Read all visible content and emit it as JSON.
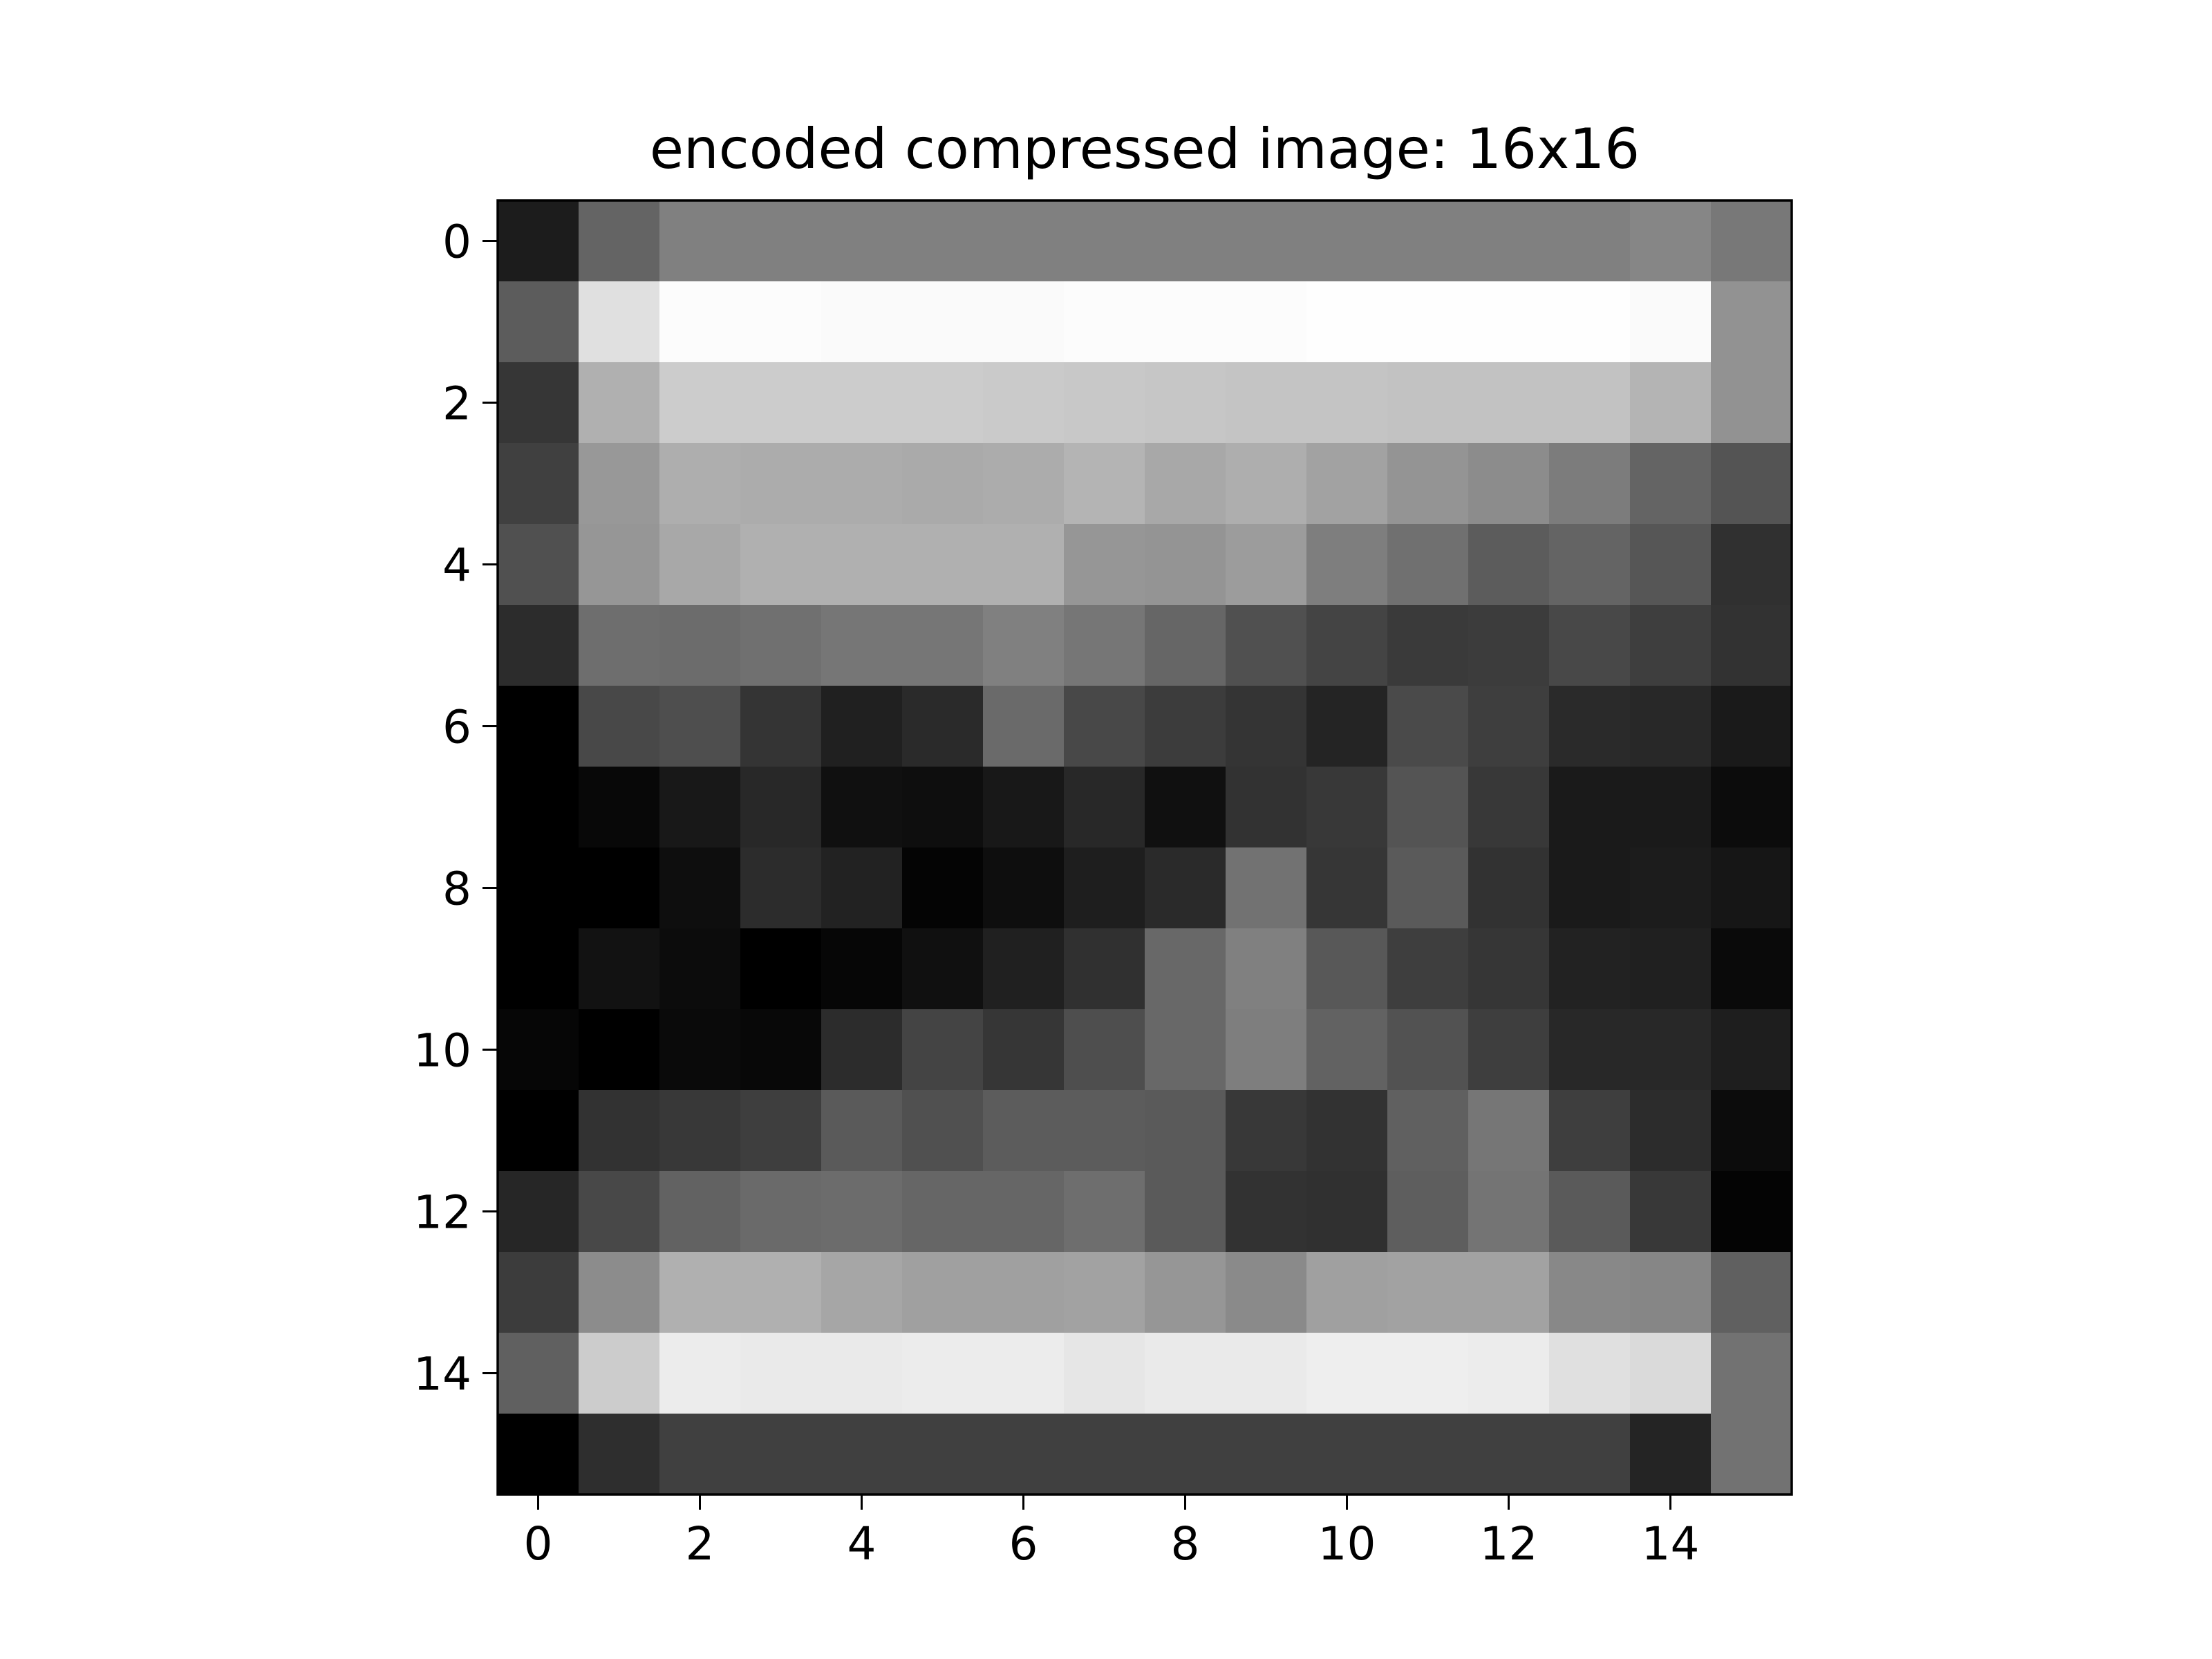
{
  "chart_data": {
    "type": "heatmap",
    "title": "encoded compressed image: 16x16",
    "xlabel": "",
    "ylabel": "",
    "colormap": "gray",
    "value_range": [
      0,
      255
    ],
    "rows": 16,
    "cols": 16,
    "x_ticks": [
      0,
      2,
      4,
      6,
      8,
      10,
      12,
      14
    ],
    "y_ticks": [
      0,
      2,
      4,
      6,
      8,
      10,
      12,
      14
    ],
    "xlim": [
      -0.5,
      15.5
    ],
    "ylim": [
      15.5,
      -0.5
    ],
    "grid": false,
    "values": [
      [
        28,
        100,
        128,
        128,
        128,
        128,
        128,
        128,
        128,
        128,
        128,
        128,
        128,
        128,
        134,
        120
      ],
      [
        92,
        224,
        252,
        252,
        250,
        250,
        250,
        252,
        252,
        252,
        254,
        254,
        254,
        254,
        250,
        146
      ],
      [
        54,
        176,
        204,
        204,
        204,
        204,
        202,
        200,
        198,
        196,
        196,
        194,
        194,
        194,
        180,
        146
      ],
      [
        64,
        152,
        174,
        172,
        172,
        170,
        172,
        180,
        168,
        174,
        162,
        148,
        140,
        124,
        100,
        84
      ],
      [
        80,
        150,
        168,
        176,
        176,
        176,
        176,
        150,
        148,
        156,
        126,
        112,
        92,
        100,
        86,
        48
      ],
      [
        44,
        110,
        108,
        112,
        118,
        118,
        128,
        118,
        102,
        80,
        68,
        58,
        60,
        72,
        62,
        50
      ],
      [
        0,
        72,
        78,
        52,
        32,
        42,
        106,
        72,
        60,
        52,
        36,
        74,
        62,
        42,
        40,
        26
      ],
      [
        0,
        8,
        24,
        40,
        16,
        14,
        24,
        40,
        16,
        50,
        56,
        84,
        56,
        26,
        26,
        12
      ],
      [
        0,
        0,
        14,
        44,
        34,
        4,
        14,
        30,
        42,
        114,
        54,
        90,
        50,
        26,
        28,
        22
      ],
      [
        0,
        18,
        12,
        0,
        6,
        16,
        32,
        48,
        104,
        128,
        88,
        62,
        54,
        34,
        32,
        10
      ],
      [
        6,
        0,
        10,
        8,
        44,
        68,
        54,
        78,
        104,
        126,
        98,
        82,
        62,
        40,
        40,
        30
      ],
      [
        0,
        50,
        56,
        62,
        90,
        80,
        92,
        92,
        90,
        56,
        50,
        96,
        118,
        62,
        44,
        12
      ],
      [
        38,
        72,
        98,
        106,
        108,
        102,
        102,
        110,
        90,
        50,
        48,
        94,
        116,
        90,
        56,
        4
      ],
      [
        60,
        140,
        176,
        176,
        166,
        160,
        160,
        162,
        150,
        138,
        160,
        162,
        162,
        136,
        134,
        96
      ],
      [
        96,
        204,
        236,
        234,
        234,
        236,
        236,
        230,
        234,
        234,
        238,
        238,
        236,
        224,
        218,
        114
      ],
      [
        0,
        46,
        64,
        64,
        64,
        64,
        64,
        64,
        64,
        64,
        64,
        64,
        64,
        64,
        36,
        114
      ]
    ]
  }
}
